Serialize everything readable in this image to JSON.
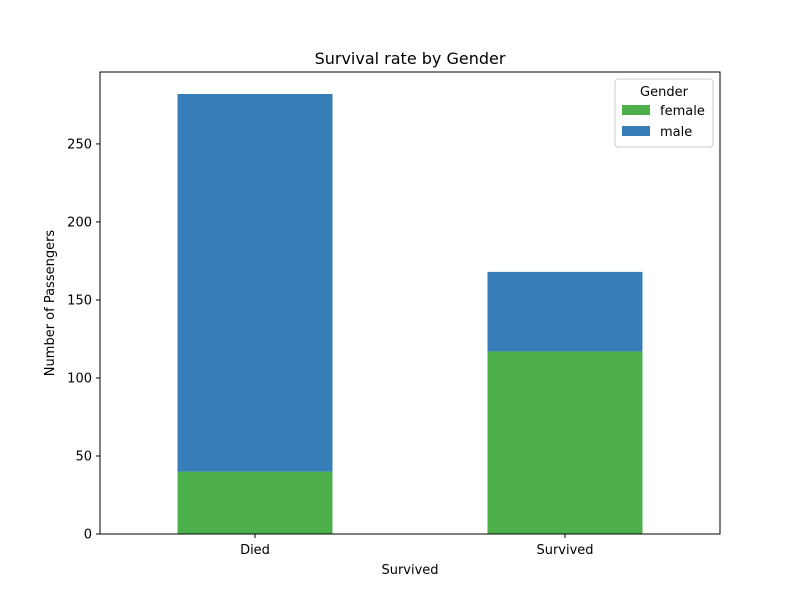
{
  "chart_data": {
    "type": "bar",
    "stacked": true,
    "title": "Survival rate by Gender",
    "xlabel": "Survived",
    "ylabel": "Number of Passengers",
    "categories": [
      "Died",
      "Survived"
    ],
    "series": [
      {
        "name": "female",
        "values": [
          40,
          117
        ],
        "color": "#4daf4a"
      },
      {
        "name": "male",
        "values": [
          242,
          51
        ],
        "color": "#377eb8"
      }
    ],
    "ylim": [
      0,
      296.1
    ],
    "yticks": [
      0,
      50,
      100,
      150,
      200,
      250
    ],
    "legend": {
      "title": "Gender",
      "placement": "top-right"
    },
    "grid": false
  }
}
